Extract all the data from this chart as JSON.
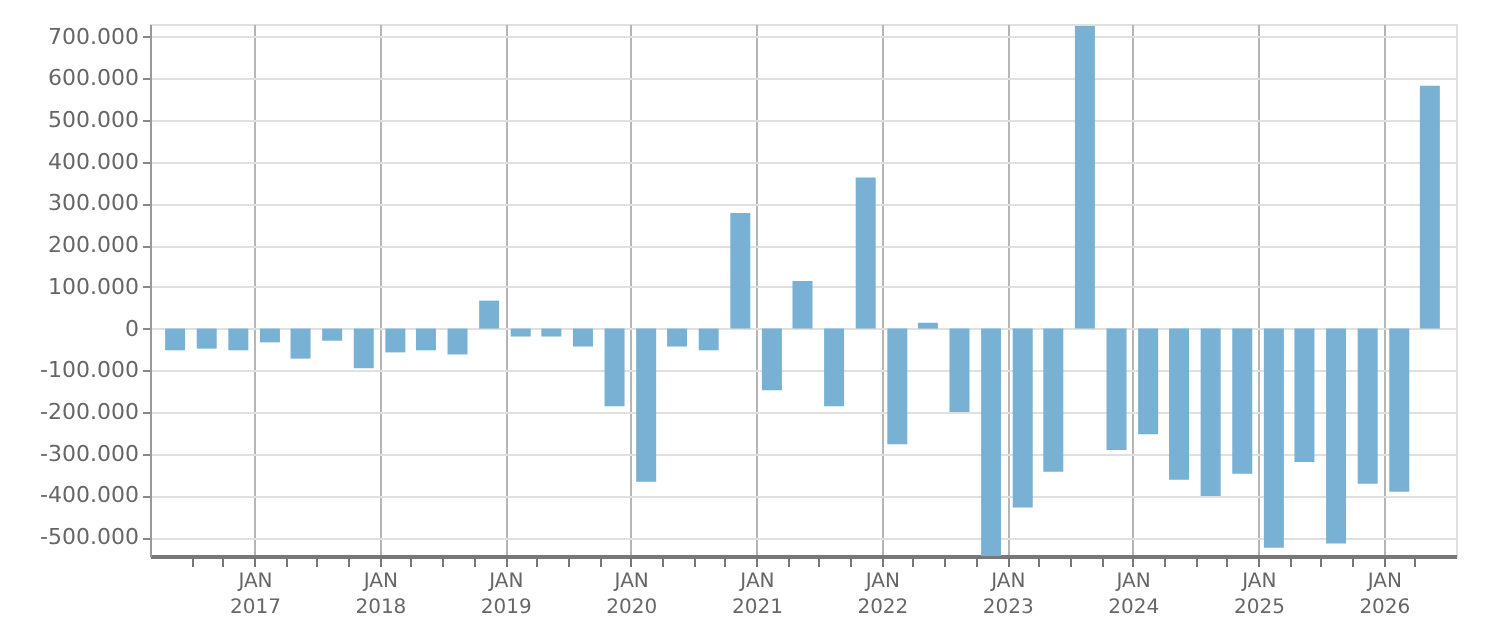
{
  "chart_data": {
    "type": "bar",
    "x": [
      "2016-05-15",
      "2016-08-15",
      "2016-11-15",
      "2017-02-15",
      "2017-05-15",
      "2017-08-15",
      "2017-11-15",
      "2018-02-15",
      "2018-05-15",
      "2018-08-15",
      "2018-11-15",
      "2019-02-15",
      "2019-05-15",
      "2019-08-15",
      "2019-11-15",
      "2020-02-15",
      "2020-05-15",
      "2020-08-15",
      "2020-11-15",
      "2021-02-15",
      "2021-05-15",
      "2021-08-15",
      "2021-11-15",
      "2022-02-15",
      "2022-05-15",
      "2022-08-15",
      "2022-11-15",
      "2023-02-15",
      "2023-05-15",
      "2023-08-15",
      "2023-11-15",
      "2024-02-15",
      "2024-05-15",
      "2024-08-15",
      "2024-11-15",
      "2025-02-15",
      "2025-05-15",
      "2025-08-15",
      "2025-11-15",
      "2026-02-15",
      "2026-05-15"
    ],
    "values": [
      -52000,
      -48000,
      -52000,
      -33000,
      -72000,
      -29000,
      -95000,
      -57000,
      -52000,
      -62000,
      67000,
      -19000,
      -19000,
      -43000,
      -186000,
      -367000,
      -43000,
      -52000,
      277000,
      -148000,
      114000,
      -186000,
      362000,
      -277000,
      14000,
      -200000,
      -545000,
      -429000,
      -343000,
      725000,
      -291000,
      -253000,
      -362000,
      -401000,
      -348000,
      -525000,
      -320000,
      -515000,
      -372000,
      -391000,
      582000
    ],
    "color": "#78b1d3",
    "xlim": [
      "2016-04-01",
      "2026-07-01"
    ],
    "xticks": [
      {
        "value": "2016-07-01",
        "label": null
      },
      {
        "value": "2016-10-01",
        "label": null
      },
      {
        "value": "2017-01-01",
        "label": "JAN 2017"
      },
      {
        "value": "2017-04-01",
        "label": null
      },
      {
        "value": "2017-07-01",
        "label": null
      },
      {
        "value": "2017-10-01",
        "label": null
      },
      {
        "value": "2018-01-01",
        "label": "JAN 2018"
      },
      {
        "value": "2018-04-01",
        "label": null
      },
      {
        "value": "2018-07-01",
        "label": null
      },
      {
        "value": "2018-10-01",
        "label": null
      },
      {
        "value": "2019-01-01",
        "label": "JAN 2019"
      },
      {
        "value": "2019-04-01",
        "label": null
      },
      {
        "value": "2019-07-01",
        "label": null
      },
      {
        "value": "2019-10-01",
        "label": null
      },
      {
        "value": "2020-01-01",
        "label": "JAN 2020"
      },
      {
        "value": "2020-04-01",
        "label": null
      },
      {
        "value": "2020-07-01",
        "label": null
      },
      {
        "value": "2020-10-01",
        "label": null
      },
      {
        "value": "2021-01-01",
        "label": "JAN 2021"
      },
      {
        "value": "2021-04-01",
        "label": null
      },
      {
        "value": "2021-07-01",
        "label": null
      },
      {
        "value": "2021-10-01",
        "label": null
      },
      {
        "value": "2022-01-01",
        "label": "JAN 2022"
      },
      {
        "value": "2022-04-01",
        "label": null
      },
      {
        "value": "2022-07-01",
        "label": null
      },
      {
        "value": "2022-10-01",
        "label": null
      },
      {
        "value": "2023-01-01",
        "label": "JAN 2023"
      },
      {
        "value": "2023-04-01",
        "label": null
      },
      {
        "value": "2023-07-01",
        "label": null
      },
      {
        "value": "2023-10-01",
        "label": null
      },
      {
        "value": "2024-01-01",
        "label": "JAN 2024"
      },
      {
        "value": "2024-04-01",
        "label": null
      },
      {
        "value": "2024-07-01",
        "label": null
      },
      {
        "value": "2024-10-01",
        "label": null
      },
      {
        "value": "2025-01-01",
        "label": "JAN 2025"
      },
      {
        "value": "2025-04-01",
        "label": null
      },
      {
        "value": "2025-07-01",
        "label": null
      },
      {
        "value": "2025-10-01",
        "label": null
      },
      {
        "value": "2026-01-01",
        "label": "JAN 2026"
      },
      {
        "value": "2026-04-01",
        "label": null
      }
    ],
    "ylim": [
      -545000,
      730000
    ],
    "yticks": [
      {
        "value": -500000,
        "label": "-500.000"
      },
      {
        "value": -400000,
        "label": "-400.000"
      },
      {
        "value": -300000,
        "label": "-300.000"
      },
      {
        "value": -200000,
        "label": "-200.000"
      },
      {
        "value": -100000,
        "label": "-100.000"
      },
      0,
      {
        "value": 100000,
        "label": "100.000"
      },
      {
        "value": 200000,
        "label": "200.000"
      },
      {
        "value": 300000,
        "label": "300.000"
      },
      {
        "value": 400000,
        "label": "400.000"
      },
      {
        "value": 500000,
        "label": "500.000"
      },
      {
        "value": 600000,
        "label": "600.000"
      },
      {
        "value": 700000,
        "label": "700.000"
      }
    ],
    "grid": true
  }
}
